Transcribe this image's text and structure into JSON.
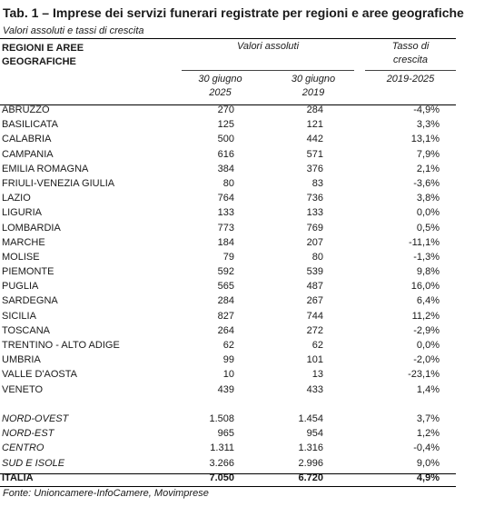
{
  "title": "Tab. 1 – Imprese dei servizi funerari registrate per regioni e aree geografiche",
  "subtitle": "Valori assoluti e tassi di crescita",
  "headers": {
    "region_line1": "REGIONI E AREE",
    "region_line2": "GEOGRAFICHE",
    "absolute": "Valori assoluti",
    "rate_line1": "Tasso di",
    "rate_line2": "crescita",
    "col1_line1": "30 giugno",
    "col1_line2": "2025",
    "col2_line1": "30 giugno",
    "col2_line2": "2019",
    "col3": "2019-2025"
  },
  "regions": [
    {
      "name": "ABRUZZO",
      "v2025": "270",
      "v2019": "284",
      "rate": "-4,9%"
    },
    {
      "name": "BASILICATA",
      "v2025": "125",
      "v2019": "121",
      "rate": "3,3%"
    },
    {
      "name": "CALABRIA",
      "v2025": "500",
      "v2019": "442",
      "rate": "13,1%"
    },
    {
      "name": "CAMPANIA",
      "v2025": "616",
      "v2019": "571",
      "rate": "7,9%"
    },
    {
      "name": "EMILIA ROMAGNA",
      "v2025": "384",
      "v2019": "376",
      "rate": "2,1%"
    },
    {
      "name": "FRIULI-VENEZIA GIULIA",
      "v2025": "80",
      "v2019": "83",
      "rate": "-3,6%"
    },
    {
      "name": "LAZIO",
      "v2025": "764",
      "v2019": "736",
      "rate": "3,8%"
    },
    {
      "name": "LIGURIA",
      "v2025": "133",
      "v2019": "133",
      "rate": "0,0%"
    },
    {
      "name": "LOMBARDIA",
      "v2025": "773",
      "v2019": "769",
      "rate": "0,5%"
    },
    {
      "name": "MARCHE",
      "v2025": "184",
      "v2019": "207",
      "rate": "-11,1%"
    },
    {
      "name": "MOLISE",
      "v2025": "79",
      "v2019": "80",
      "rate": "-1,3%"
    },
    {
      "name": "PIEMONTE",
      "v2025": "592",
      "v2019": "539",
      "rate": "9,8%"
    },
    {
      "name": "PUGLIA",
      "v2025": "565",
      "v2019": "487",
      "rate": "16,0%"
    },
    {
      "name": "SARDEGNA",
      "v2025": "284",
      "v2019": "267",
      "rate": "6,4%"
    },
    {
      "name": "SICILIA",
      "v2025": "827",
      "v2019": "744",
      "rate": "11,2%"
    },
    {
      "name": "TOSCANA",
      "v2025": "264",
      "v2019": "272",
      "rate": "-2,9%"
    },
    {
      "name": "TRENTINO - ALTO ADIGE",
      "v2025": "62",
      "v2019": "62",
      "rate": "0,0%"
    },
    {
      "name": "UMBRIA",
      "v2025": "99",
      "v2019": "101",
      "rate": "-2,0%"
    },
    {
      "name": "VALLE D'AOSTA",
      "v2025": "10",
      "v2019": "13",
      "rate": "-23,1%"
    },
    {
      "name": "VENETO",
      "v2025": "439",
      "v2019": "433",
      "rate": "1,4%"
    }
  ],
  "areas": [
    {
      "name": "NORD-OVEST",
      "v2025": "1.508",
      "v2019": "1.454",
      "rate": "3,7%"
    },
    {
      "name": "NORD-EST",
      "v2025": "965",
      "v2019": "954",
      "rate": "1,2%"
    },
    {
      "name": "CENTRO",
      "v2025": "1.311",
      "v2019": "1.316",
      "rate": "-0,4%"
    },
    {
      "name": "SUD E ISOLE",
      "v2025": "3.266",
      "v2019": "2.996",
      "rate": "9,0%"
    }
  ],
  "total": {
    "name": "ITALIA",
    "v2025": "7.050",
    "v2019": "6.720",
    "rate": "4,9%"
  },
  "source": "Fonte: Unioncamere-InfoCamere, Movimprese"
}
